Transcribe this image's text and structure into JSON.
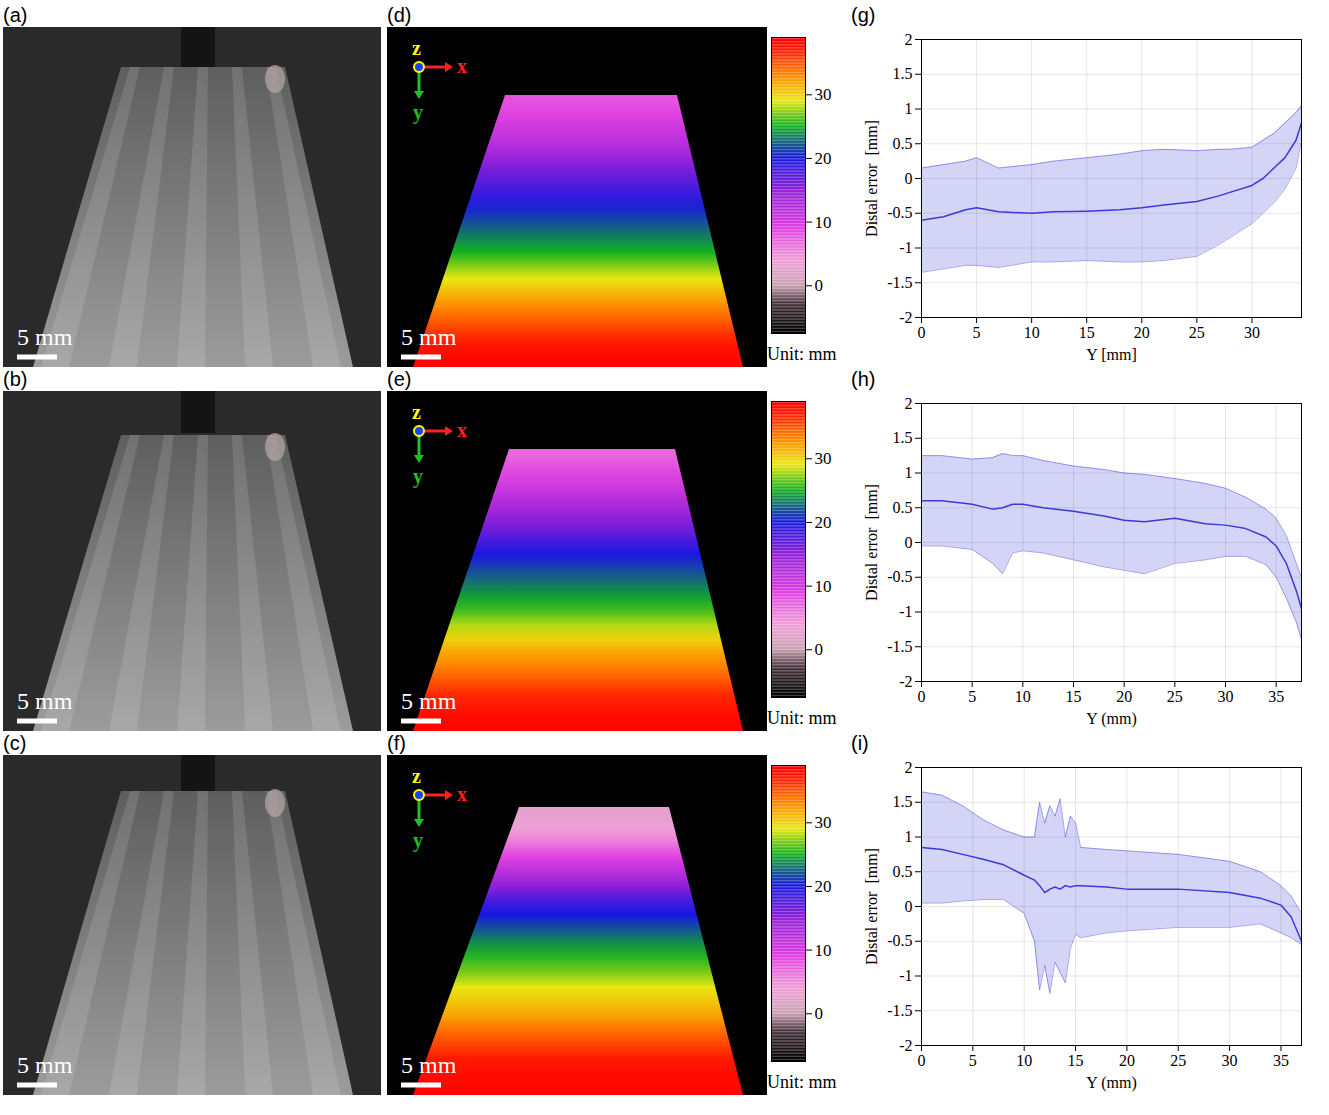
{
  "chart_data": [
    {
      "type": "image",
      "title": "(a)",
      "scale_bar": "5 mm"
    },
    {
      "type": "image",
      "title": "(b)",
      "scale_bar": "5 mm"
    },
    {
      "type": "image",
      "title": "(c)",
      "scale_bar": "5 mm"
    },
    {
      "type": "point_cloud",
      "title": "(d)",
      "scale_bar": "5 mm",
      "axes_labels": [
        "z",
        "x",
        "y"
      ],
      "depth_rows": [
        8,
        9,
        10.5,
        12,
        14,
        16,
        17.5,
        19,
        20.5,
        22,
        23.5,
        25,
        27,
        29,
        31,
        33,
        34.5,
        36,
        37.5,
        38.5
      ],
      "colorbar": {
        "range": [
          -7.5,
          39
        ],
        "ticks": [
          0,
          10,
          20,
          30
        ],
        "label": "Unit: mm",
        "stops": [
          -7.5,
          -3,
          0,
          4,
          9,
          15,
          20,
          25,
          29,
          33,
          37,
          39
        ],
        "colors": [
          "#000000",
          "#403038",
          "#c8a0b0",
          "#f0a0d8",
          "#e040e0",
          "#9020d8",
          "#1818e0",
          "#10b020",
          "#e8e810",
          "#ff8c00",
          "#ff1800",
          "#ff0000"
        ]
      }
    },
    {
      "type": "point_cloud",
      "title": "(e)",
      "scale_bar": "5 mm",
      "axes_labels": [
        "z",
        "x",
        "y"
      ],
      "depth_rows": [
        7,
        8.5,
        10,
        12,
        14,
        16,
        18,
        20,
        21.5,
        23,
        24.5,
        26,
        28,
        30,
        32,
        33.5,
        35,
        36.5,
        37.5,
        38.5
      ],
      "colorbar": {
        "range": [
          -7.5,
          39
        ],
        "ticks": [
          0,
          10,
          20,
          30
        ],
        "label": "Unit: mm",
        "stops": [
          -7.5,
          -3,
          0,
          4,
          9,
          15,
          20,
          25,
          29,
          33,
          37,
          39
        ],
        "colors": [
          "#000000",
          "#403038",
          "#c8a0b0",
          "#f0a0d8",
          "#e040e0",
          "#9020d8",
          "#1818e0",
          "#10b020",
          "#e8e810",
          "#ff8c00",
          "#ff1800",
          "#ff0000"
        ]
      }
    },
    {
      "type": "point_cloud",
      "title": "(f)",
      "scale_bar": "5 mm",
      "axes_labels": [
        "z",
        "x",
        "y"
      ],
      "depth_rows": [
        3,
        4,
        6,
        9,
        12,
        15,
        18,
        20,
        22,
        24,
        25.5,
        27,
        29,
        30.5,
        32,
        34,
        35.5,
        37,
        38,
        38.5
      ],
      "colorbar": {
        "range": [
          -7.5,
          39
        ],
        "ticks": [
          0,
          10,
          20,
          30
        ],
        "label": "Unit: mm",
        "stops": [
          -7.5,
          -3,
          0,
          4,
          9,
          15,
          20,
          25,
          29,
          33,
          37,
          39
        ],
        "colors": [
          "#000000",
          "#403038",
          "#c8a0b0",
          "#f0a0d8",
          "#e040e0",
          "#9020d8",
          "#1818e0",
          "#10b020",
          "#e8e810",
          "#ff8c00",
          "#ff1800",
          "#ff0000"
        ]
      }
    },
    {
      "type": "line",
      "title": "(g)",
      "x_label": "Y [mm]",
      "y_label": "Distal error  [mm]",
      "xlim": [
        0,
        34.5
      ],
      "xticks": [
        0,
        5,
        10,
        15,
        20,
        25,
        30
      ],
      "ylim": [
        -2,
        2
      ],
      "yticks": [
        -2,
        -1.5,
        -1,
        -0.5,
        0,
        0.5,
        1,
        1.5,
        2
      ],
      "grid": true,
      "color": "#3a3ad8",
      "x": [
        0,
        2,
        4,
        5,
        7,
        10,
        12,
        15,
        18,
        20,
        22,
        25,
        27,
        28,
        30,
        31,
        32,
        33,
        34,
        34.5
      ],
      "values": [
        -0.6,
        -0.55,
        -0.45,
        -0.42,
        -0.48,
        -0.5,
        -0.48,
        -0.47,
        -0.45,
        -0.42,
        -0.38,
        -0.33,
        -0.25,
        -0.2,
        -0.1,
        0,
        0.15,
        0.3,
        0.55,
        0.8
      ],
      "upper": [
        0.15,
        0.2,
        0.25,
        0.3,
        0.15,
        0.2,
        0.25,
        0.3,
        0.35,
        0.4,
        0.42,
        0.4,
        0.42,
        0.42,
        0.45,
        0.55,
        0.65,
        0.8,
        0.95,
        1.05
      ],
      "lower": [
        -1.35,
        -1.3,
        -1.25,
        -1.25,
        -1.28,
        -1.2,
        -1.2,
        -1.18,
        -1.2,
        -1.2,
        -1.18,
        -1.12,
        -0.95,
        -0.85,
        -0.65,
        -0.5,
        -0.35,
        -0.15,
        0.15,
        0.55
      ]
    },
    {
      "type": "line",
      "title": "(h)",
      "x_label": "Y (mm)",
      "y_label": "Distal error  [mm]",
      "xlim": [
        0,
        37.5
      ],
      "xticks": [
        0,
        5,
        10,
        15,
        20,
        25,
        30,
        35
      ],
      "ylim": [
        -2,
        2
      ],
      "yticks": [
        -2,
        -1.5,
        -1,
        -0.5,
        0,
        0.5,
        1,
        1.5,
        2
      ],
      "grid": true,
      "color": "#3a3ad8",
      "x": [
        0,
        2,
        5,
        7,
        8,
        9,
        10,
        12,
        15,
        18,
        20,
        22,
        25,
        28,
        30,
        32,
        34,
        35,
        36,
        37,
        37.5
      ],
      "values": [
        0.6,
        0.6,
        0.55,
        0.48,
        0.5,
        0.55,
        0.55,
        0.5,
        0.45,
        0.38,
        0.32,
        0.3,
        0.35,
        0.27,
        0.25,
        0.2,
        0.08,
        -0.05,
        -0.3,
        -0.7,
        -0.95
      ],
      "upper": [
        1.25,
        1.25,
        1.2,
        1.22,
        1.28,
        1.25,
        1.25,
        1.18,
        1.1,
        1.05,
        1.0,
        0.98,
        0.92,
        0.85,
        0.78,
        0.65,
        0.48,
        0.35,
        0.1,
        -0.3,
        -0.5
      ],
      "lower": [
        -0.05,
        -0.05,
        -0.1,
        -0.3,
        -0.45,
        -0.15,
        -0.12,
        -0.15,
        -0.25,
        -0.35,
        -0.4,
        -0.45,
        -0.3,
        -0.25,
        -0.2,
        -0.2,
        -0.32,
        -0.5,
        -0.8,
        -1.15,
        -1.4
      ]
    },
    {
      "type": "line",
      "title": "(i)",
      "x_label": "Y (mm)",
      "y_label": "Distal error  [mm]",
      "xlim": [
        0,
        37
      ],
      "xticks": [
        0,
        5,
        10,
        15,
        20,
        25,
        30,
        35
      ],
      "ylim": [
        -2,
        2
      ],
      "yticks": [
        -2,
        -1.5,
        -1,
        -0.5,
        0,
        0.5,
        1,
        1.5,
        2
      ],
      "grid": true,
      "color": "#3a3ad8",
      "x": [
        0,
        2,
        4,
        6,
        8,
        10,
        11,
        11.5,
        12,
        12.5,
        13,
        13.5,
        14,
        14.5,
        15,
        15.5,
        18,
        20,
        25,
        30,
        33,
        35,
        36,
        37
      ],
      "values": [
        0.85,
        0.82,
        0.75,
        0.68,
        0.6,
        0.45,
        0.38,
        0.3,
        0.2,
        0.25,
        0.28,
        0.25,
        0.3,
        0.28,
        0.3,
        0.3,
        0.28,
        0.25,
        0.25,
        0.2,
        0.12,
        0.02,
        -0.15,
        -0.5
      ],
      "upper": [
        1.65,
        1.6,
        1.45,
        1.25,
        1.1,
        1.0,
        1.0,
        1.5,
        1.2,
        1.45,
        1.3,
        1.55,
        1.0,
        1.3,
        1.2,
        0.85,
        0.82,
        0.8,
        0.75,
        0.65,
        0.5,
        0.3,
        0.15,
        -0.1
      ],
      "lower": [
        0.05,
        0.05,
        0.08,
        0.1,
        0.1,
        -0.1,
        -0.5,
        -1.2,
        -0.85,
        -1.25,
        -0.8,
        -0.95,
        -1.1,
        -0.6,
        -0.4,
        -0.45,
        -0.38,
        -0.35,
        -0.3,
        -0.3,
        -0.25,
        -0.38,
        -0.45,
        -0.55
      ]
    }
  ]
}
